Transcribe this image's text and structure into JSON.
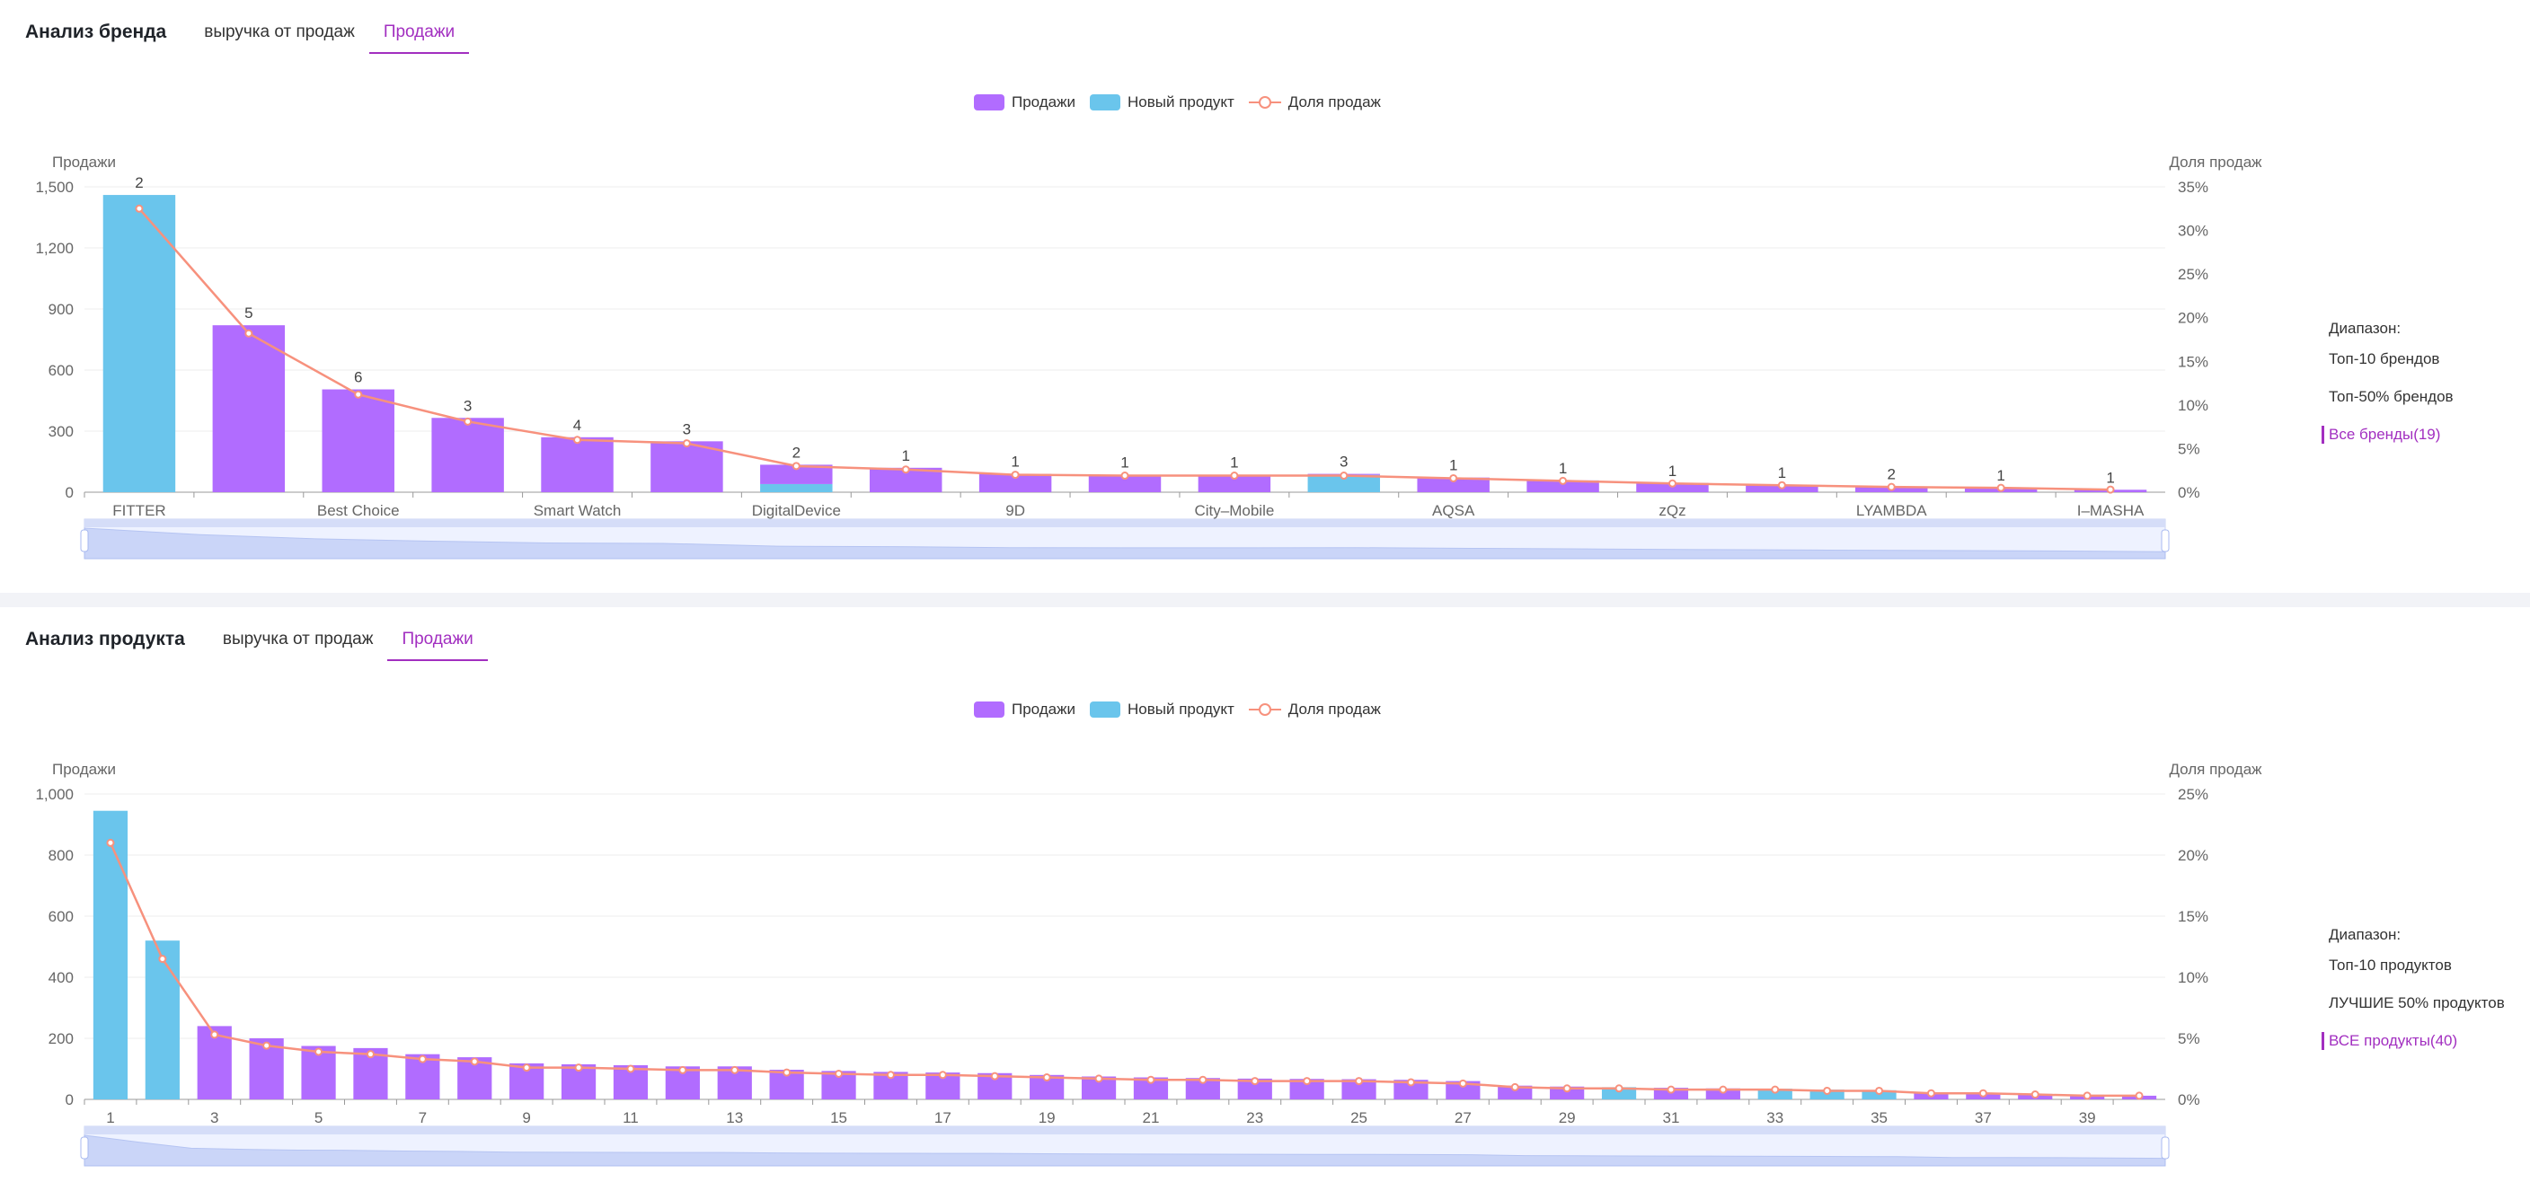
{
  "brand": {
    "title": "Анализ бренда",
    "tabs": [
      {
        "label": "выручка от продаж"
      },
      {
        "label": "Продажи"
      }
    ],
    "legend": [
      {
        "label": "Продажи",
        "color": "#b16cff"
      },
      {
        "label": "Новый продукт",
        "color": "#6ac5ec"
      },
      {
        "label": "Доля продаж",
        "color": "#f7917d"
      }
    ],
    "range": {
      "label": "Диапазон:",
      "options": [
        "Топ-10 брендов",
        "Топ-50% брендов",
        "Все бренды(19)"
      ],
      "active": 2
    }
  },
  "product": {
    "title": "Анализ продукта",
    "tabs": [
      {
        "label": "выручка от продаж"
      },
      {
        "label": "Продажи"
      }
    ],
    "legend": [
      {
        "label": "Продажи",
        "color": "#b16cff"
      },
      {
        "label": "Новый продукт",
        "color": "#6ac5ec"
      },
      {
        "label": "Доля продаж",
        "color": "#f7917d"
      }
    ],
    "range": {
      "label": "Диапазон:",
      "options": [
        "Топ-10 продуктов",
        "ЛУЧШИЕ 50% продуктов",
        "ВСЕ продукты(40)"
      ],
      "active": 2
    }
  },
  "chart_data": [
    {
      "type": "bar",
      "title": "",
      "ylabel": "Продажи",
      "y2label": "Доля продаж",
      "ylim": [
        0,
        1500
      ],
      "yticks": [
        "0",
        "300",
        "600",
        "900",
        "1,200",
        "1,500"
      ],
      "y2lim": [
        0,
        35
      ],
      "y2ticks": [
        "0%",
        "5%",
        "10%",
        "15%",
        "20%",
        "25%",
        "30%",
        "35%"
      ],
      "categories": [
        "FITTER",
        "",
        "Best Choice",
        "",
        "Smart Watch",
        "",
        "DigitalDevice",
        "",
        "9D",
        "",
        "City–Mobile",
        "",
        "AQSA",
        "",
        "zQz",
        "",
        "LYAMBDA",
        "",
        "I–MASHA"
      ],
      "series": [
        {
          "name": "Продажи",
          "values": [
            0,
            820,
            505,
            365,
            270,
            250,
            95,
            120,
            90,
            85,
            85,
            5,
            72,
            58,
            45,
            35,
            28,
            22,
            12
          ]
        },
        {
          "name": "Новый продукт",
          "values": [
            1460,
            0,
            0,
            0,
            0,
            0,
            40,
            0,
            0,
            0,
            0,
            85,
            0,
            0,
            0,
            0,
            0,
            0,
            0
          ]
        },
        {
          "name": "Доля продаж",
          "values": [
            32.5,
            18.2,
            11.2,
            8.1,
            6.0,
            5.6,
            3.0,
            2.6,
            2.0,
            1.9,
            1.9,
            1.9,
            1.6,
            1.3,
            1.0,
            0.8,
            0.6,
            0.5,
            0.3
          ]
        }
      ],
      "bar_labels": [
        "2",
        "5",
        "6",
        "3",
        "4",
        "3",
        "2",
        "1",
        "1",
        "1",
        "1",
        "3",
        "1",
        "1",
        "1",
        "1",
        "2",
        "1",
        "1"
      ],
      "grid": true,
      "legend": "top-center"
    },
    {
      "type": "bar",
      "title": "",
      "ylabel": "Продажи",
      "y2label": "Доля продаж",
      "ylim": [
        0,
        1000
      ],
      "yticks": [
        "0",
        "200",
        "400",
        "600",
        "800",
        "1,000"
      ],
      "y2lim": [
        0,
        25
      ],
      "y2ticks": [
        "0%",
        "5%",
        "10%",
        "15%",
        "20%",
        "25%"
      ],
      "categories": [
        "1",
        "",
        "3",
        "",
        "5",
        "",
        "7",
        "",
        "9",
        "",
        "11",
        "",
        "13",
        "",
        "15",
        "",
        "17",
        "",
        "19",
        "",
        "21",
        "",
        "23",
        "",
        "25",
        "",
        "27",
        "",
        "29",
        "",
        "31",
        "",
        "33",
        "",
        "35",
        "",
        "37",
        "",
        "39",
        ""
      ],
      "series": [
        {
          "name": "Продажи",
          "values": [
            0,
            0,
            240,
            200,
            175,
            168,
            148,
            138,
            118,
            115,
            112,
            108,
            108,
            97,
            93,
            90,
            88,
            86,
            80,
            75,
            72,
            70,
            68,
            67,
            66,
            64,
            60,
            45,
            42,
            0,
            38,
            36,
            0,
            0,
            0,
            20,
            20,
            18,
            15,
            12
          ]
        },
        {
          "name": "Новый продукт",
          "values": [
            945,
            520,
            0,
            0,
            0,
            0,
            0,
            0,
            0,
            0,
            0,
            0,
            0,
            0,
            0,
            0,
            0,
            0,
            0,
            0,
            0,
            0,
            0,
            0,
            0,
            0,
            0,
            0,
            0,
            40,
            0,
            0,
            35,
            32,
            30,
            0,
            0,
            0,
            0,
            0
          ]
        },
        {
          "name": "Доля продаж",
          "values": [
            21.0,
            11.5,
            5.3,
            4.4,
            3.9,
            3.7,
            3.3,
            3.1,
            2.6,
            2.6,
            2.5,
            2.4,
            2.4,
            2.2,
            2.1,
            2.0,
            2.0,
            1.9,
            1.8,
            1.7,
            1.6,
            1.6,
            1.5,
            1.5,
            1.5,
            1.4,
            1.3,
            1.0,
            0.9,
            0.9,
            0.8,
            0.8,
            0.8,
            0.7,
            0.7,
            0.5,
            0.5,
            0.4,
            0.3,
            0.3
          ]
        }
      ],
      "grid": true,
      "legend": "top-center"
    }
  ]
}
